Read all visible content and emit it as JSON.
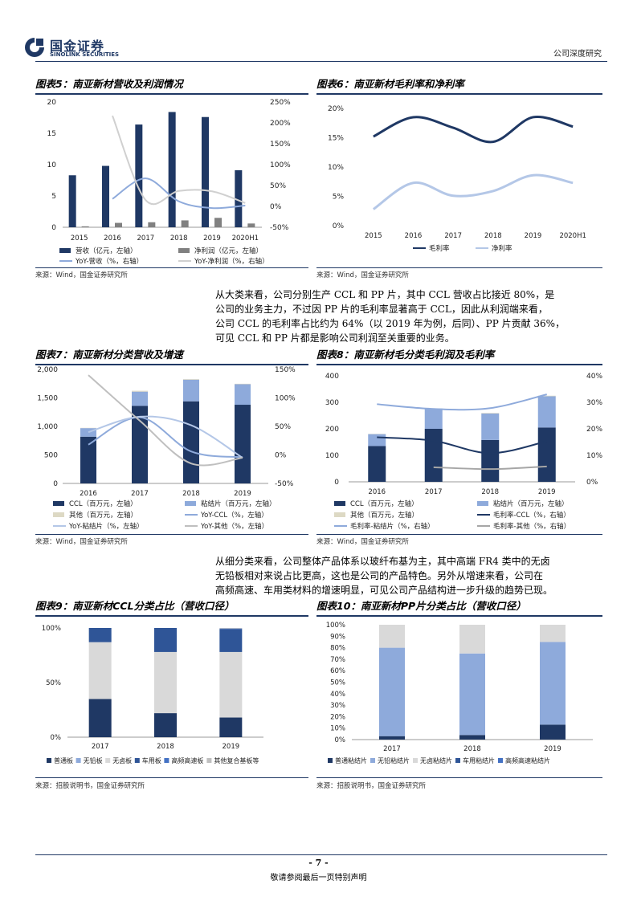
{
  "header": {
    "brand_cn": "国金证券",
    "brand_en": "SINOLINK SECURITIES",
    "doc_type": "公司深度研究"
  },
  "fig5": {
    "title": "图表5：南亚新材营收及利润情况",
    "source": "来源：Wind，国金证券研究所",
    "legend": [
      "营收（亿元，左轴）",
      "净利润（亿元，左轴）",
      "YoY-营收（%，右轴）",
      "YoY-净利润（%，右轴）"
    ],
    "left_ticks": [
      "0",
      "5",
      "10",
      "15",
      "20"
    ],
    "right_ticks": [
      "-50%",
      "0%",
      "50%",
      "100%",
      "150%",
      "200%",
      "250%"
    ]
  },
  "fig6": {
    "title": "图表6：南亚新材毛利率和净利率",
    "source": "来源：Wind，国金证券研究所",
    "legend": [
      "毛利率",
      "净利率"
    ],
    "y_ticks": [
      "0%",
      "5%",
      "10%",
      "15%",
      "20%"
    ]
  },
  "paragraph1": [
    "从大类来看，公司分别生产 CCL 和 PP 片，其中 CCL 营收占比接近 80%，是",
    "公司的业务主力，不过因 PP 片的毛利率显著高于 CCL，因此从利润端来看，",
    "公司 CCL 的毛利率占比约为 64%（以 2019 年为例，后同）、PP 片贡献 36%，",
    "可见 CCL 和 PP 片都是影响公司利润至关重要的业务。"
  ],
  "fig7": {
    "title": "图表7：南亚新材分类营收及增速",
    "source": "来源：Wind，国金证券研究所",
    "legend": [
      "CCL（百万元，左轴）",
      "粘结片（百万元，左轴）",
      "其他（百万元，左轴）",
      "YoY-CCL（%，左轴）",
      "YoY-粘结片（%，左轴）",
      "YoY-其他（%，左轴）"
    ],
    "left_ticks": [
      "0",
      "500",
      "1,000",
      "1,500",
      "2,000"
    ],
    "right_ticks": [
      "-50%",
      "0%",
      "50%",
      "100%",
      "150%"
    ]
  },
  "fig8": {
    "title": "图表8：南亚新材毛分类毛利润及毛利率",
    "source": "来源：Wind，国金证券研究所",
    "legend": [
      "CCL（百万元，左轴）",
      "粘结片（百万元，左轴）",
      "其他（百万元，左轴）",
      "毛利率-CCL（%，右轴）",
      "毛利率-粘结片（%，右轴）",
      "毛利率-其他（%，右轴）"
    ],
    "left_ticks": [
      "0",
      "100",
      "200",
      "300",
      "400"
    ],
    "right_ticks": [
      "0%",
      "10%",
      "20%",
      "30%",
      "40%"
    ]
  },
  "paragraph2": [
    "从细分类来看，公司整体产品体系以玻纤布基为主，其中高端 FR4 类中的无卤",
    "无铅板相对来说占比更高，这也是公司的产品特色。另外从增速来看，公司在",
    "高频高速、车用类材料的增速明显，可见公司产品结构进一步升级的趋势已现。"
  ],
  "fig9": {
    "title": "图表9：南亚新材CCL分类占比（营收口径）",
    "source": "来源：招股说明书，国金证券研究所",
    "legend": [
      "普通板",
      "无铅板",
      "无卤板",
      "车用板",
      "高频高速板",
      "其他复合基板等"
    ],
    "y_ticks": [
      "0%",
      "50%",
      "100%"
    ]
  },
  "fig10": {
    "title": "图表10：南亚新材PP片分类占比（营收口径）",
    "source": "来源：招股说明书，国金证券研究所",
    "legend": [
      "普通粘结片",
      "无铅粘结片",
      "无卤粘结片",
      "车用粘结片",
      "高频高速粘结片"
    ],
    "y_ticks": [
      "0%",
      "10%",
      "20%",
      "30%",
      "40%",
      "50%",
      "60%",
      "70%",
      "80%",
      "90%",
      "100%"
    ]
  },
  "colors": {
    "navy": "#1f3864",
    "light_blue": "#8eaadb",
    "gray": "#808080",
    "light_gray": "#d9d9d9",
    "beige": "#ddd9c4"
  },
  "chart_data": [
    {
      "id": "fig5",
      "type": "bar",
      "categories": [
        "2015",
        "2016",
        "2017",
        "2018",
        "2019",
        "2020H1"
      ],
      "series": [
        {
          "name": "营收（亿元，左轴）",
          "values": [
            8.3,
            9.8,
            16.4,
            18.4,
            17.6,
            9.1
          ],
          "axis": "left"
        },
        {
          "name": "净利润（亿元，左轴）",
          "values": [
            0.15,
            0.7,
            0.8,
            1.1,
            1.5,
            0.6
          ],
          "axis": "left"
        },
        {
          "name": "YoY-营收（%，右轴）",
          "values": [
            null,
            18,
            67,
            12,
            -4,
            2
          ],
          "axis": "right",
          "kind": "line"
        },
        {
          "name": "YoY-净利润（%，右轴）",
          "values": [
            null,
            217,
            15,
            37,
            36,
            8
          ],
          "axis": "right",
          "kind": "line"
        }
      ],
      "ylim": [
        0,
        20
      ],
      "y2lim": [
        -50,
        250
      ]
    },
    {
      "id": "fig6",
      "type": "line",
      "categories": [
        "2015",
        "2016",
        "2017",
        "2018",
        "2019",
        "2020H1"
      ],
      "series": [
        {
          "name": "毛利率",
          "values": [
            15.2,
            18.5,
            16.7,
            14.3,
            18.5,
            16.9
          ]
        },
        {
          "name": "净利率",
          "values": [
            2.8,
            7.3,
            5.1,
            5.9,
            8.6,
            7.3
          ]
        }
      ],
      "ylim": [
        0,
        20
      ]
    },
    {
      "id": "fig7",
      "type": "bar",
      "categories": [
        "2016",
        "2017",
        "2018",
        "2019"
      ],
      "series": [
        {
          "name": "CCL（百万元，左轴）",
          "values": [
            820,
            1360,
            1440,
            1380
          ],
          "axis": "left"
        },
        {
          "name": "粘结片（百万元，左轴）",
          "values": [
            150,
            250,
            380,
            360
          ],
          "axis": "left"
        },
        {
          "name": "其他（百万元，左轴）",
          "values": [
            5,
            15,
            10,
            8
          ],
          "axis": "left"
        },
        {
          "name": "YoY-CCL（%，左轴）",
          "values": [
            18,
            66,
            6,
            -4
          ],
          "axis": "right",
          "kind": "line"
        },
        {
          "name": "YoY-粘结片（%，左轴）",
          "values": [
            40,
            67,
            52,
            -5
          ],
          "axis": "right",
          "kind": "line"
        },
        {
          "name": "YoY-其他（%，左轴）",
          "values": [
            140,
            60,
            -15,
            -5
          ],
          "axis": "right",
          "kind": "line"
        }
      ],
      "ylim": [
        0,
        2000
      ],
      "y2lim": [
        -50,
        150
      ]
    },
    {
      "id": "fig8",
      "type": "bar",
      "categories": [
        "2016",
        "2017",
        "2018",
        "2019"
      ],
      "series": [
        {
          "name": "CCL（百万元，左轴）",
          "values": [
            135,
            200,
            158,
            205
          ],
          "axis": "left"
        },
        {
          "name": "粘结片（百万元，左轴）",
          "values": [
            45,
            75,
            100,
            118
          ],
          "axis": "left"
        },
        {
          "name": "其他（百万元，左轴）",
          "values": [
            1,
            2,
            2,
            2
          ],
          "axis": "left"
        },
        {
          "name": "毛利率-CCL（%，右轴）",
          "values": [
            16.8,
            15.5,
            10.8,
            15.3
          ],
          "axis": "right",
          "kind": "line"
        },
        {
          "name": "毛利率-粘结片（%，右轴）",
          "values": [
            29.3,
            27.5,
            27.8,
            33
          ],
          "axis": "right",
          "kind": "line"
        },
        {
          "name": "毛利率-其他（%，右轴）",
          "values": [
            null,
            5.5,
            4.8,
            5.8
          ],
          "axis": "right",
          "kind": "line"
        }
      ],
      "ylim": [
        0,
        400
      ],
      "y2lim": [
        0,
        40
      ]
    },
    {
      "id": "fig9",
      "type": "bar",
      "stacked": true,
      "categories": [
        "2017",
        "2018",
        "2019"
      ],
      "series": [
        {
          "name": "普通板",
          "values": [
            35,
            22,
            18
          ]
        },
        {
          "name": "无铅板",
          "values": [
            0,
            0,
            0
          ]
        },
        {
          "name": "无卤板",
          "values": [
            52,
            56,
            60
          ]
        },
        {
          "name": "车用板",
          "values": [
            13,
            22,
            21
          ]
        },
        {
          "name": "高频高速板",
          "values": [
            0,
            0,
            0.5
          ]
        },
        {
          "name": "其他复合基板等",
          "values": [
            0,
            0,
            0.5
          ]
        }
      ],
      "ylim": [
        0,
        100
      ]
    },
    {
      "id": "fig10",
      "type": "bar",
      "stacked": true,
      "categories": [
        "2017",
        "2018",
        "2019"
      ],
      "series": [
        {
          "name": "普通粘结片",
          "values": [
            3,
            4,
            13
          ]
        },
        {
          "name": "无铅粘结片",
          "values": [
            77,
            71,
            72
          ]
        },
        {
          "name": "无卤粘结片",
          "values": [
            20,
            25,
            15
          ]
        },
        {
          "name": "车用粘结片",
          "values": [
            0,
            0,
            0
          ]
        },
        {
          "name": "高频高速粘结片",
          "values": [
            0,
            0,
            0
          ]
        }
      ],
      "ylim": [
        0,
        100
      ]
    }
  ],
  "footer": {
    "page": "- 7 -",
    "disclaimer": "敬请参阅最后一页特别声明"
  }
}
